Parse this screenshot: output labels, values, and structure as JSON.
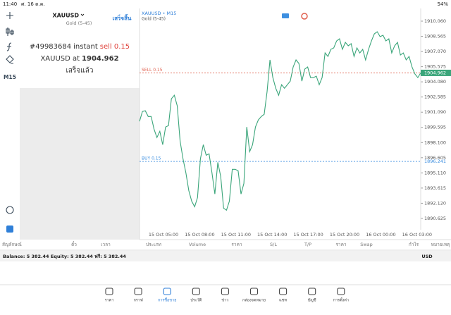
{
  "status_bar": {
    "time": "11:40",
    "date": "ศ. 16 ต.ค.",
    "battery": "54%"
  },
  "toolbar": {
    "timeframe": "M15"
  },
  "order_panel": {
    "symbol": "XAUUSD",
    "description": "Gold (5-45)",
    "done_button": "เสร็จสิ้น",
    "ticket": "#49983684",
    "mode": "instant",
    "action": "sell 0.15",
    "price_prefix": "XAUUSD at",
    "price": 1904.962,
    "status": "เสร็จแล้ว"
  },
  "chart": {
    "type": "line",
    "title": "XAUUSD • M15",
    "subtitle": "Gold (5-45)",
    "color": "#3aa57a",
    "ylim": [
      1889.51,
      1911.31
    ],
    "yticks": [
      {
        "value": 1910.06,
        "label": "1910.060"
      },
      1908.565,
      {
        "value": 1907.07,
        "label": "1907.070"
      },
      1905.575,
      {
        "value": 1904.08,
        "label": "1904.080"
      },
      1902.585,
      {
        "value": 1901.09,
        "label": "1901.090"
      },
      1899.595,
      {
        "value": 1898.1,
        "label": "1898.100"
      },
      1896.605,
      {
        "value": 1895.11,
        "label": "1895.110"
      },
      1893.615,
      {
        "value": 1892.12,
        "label": "1892.120"
      },
      1890.625
    ],
    "x_labels": [
      "15 Oct 05:00",
      "15 Oct 08:00",
      "15 Oct 11:00",
      "15 Oct 14:00",
      "15 Oct 17:00",
      "15 Oct 20:00",
      "16 Oct 00:00",
      "16 Oct 03:00"
    ],
    "values": [
      1900.19,
      1901.16,
      1901.23,
      1900.67,
      1900.67,
      1899.42,
      1898.59,
      1899.21,
      1897.89,
      1899.63,
      1899.77,
      1902.41,
      1902.76,
      1901.72,
      1898.24,
      1896.5,
      1895.11,
      1893.37,
      1892.33,
      1891.77,
      1892.68,
      1896.5,
      1897.89,
      1896.85,
      1896.99,
      1895.11,
      1893.03,
      1896.15,
      1894.76,
      1891.63,
      1891.43,
      1892.33,
      1895.46,
      1895.46,
      1895.32,
      1893.03,
      1894.07,
      1899.63,
      1897.2,
      1897.89,
      1899.63,
      1900.33,
      1900.67,
      1900.88,
      1903.11,
      1906.24,
      1904.5,
      1903.45,
      1902.76,
      1903.8,
      1903.45,
      1903.8,
      1904.15,
      1905.54,
      1906.24,
      1905.89,
      1904.15,
      1905.33,
      1905.54,
      1904.5,
      1904.5,
      1904.64,
      1903.8,
      1904.5,
      1906.93,
      1906.58,
      1907.28,
      1907.42,
      1908.11,
      1908.32,
      1907.28,
      1907.97,
      1907.63,
      1907.84,
      1906.58,
      1907.42,
      1906.93,
      1907.28,
      1906.24,
      1907.28,
      1908.11,
      1908.81,
      1909.02,
      1908.53,
      1908.67,
      1908.11,
      1908.32,
      1906.93,
      1907.63,
      1907.97,
      1906.72,
      1906.93,
      1906.24,
      1906.58,
      1905.54,
      1904.85,
      1904.5,
      1904.962
    ],
    "order_lines": [
      {
        "label": "SELL 0.15",
        "price": 1904.962,
        "color": "#e0604f"
      },
      {
        "label": "BUY 0.15",
        "price": 1896.241,
        "color": "#3d8fe0"
      }
    ]
  },
  "table": {
    "columns": [
      "สัญลักษณ์",
      "ตั๋ว",
      "เวลา",
      "ประเภท",
      "Volume",
      "ราคา",
      "S/L",
      "T/P",
      "ราคา",
      "Swap",
      "กำไร",
      "หมายเหตุ"
    ],
    "summary": "Balance: 5 382.44 Equity: 5 382.44 ฟรี: 5 382.44",
    "currency": "USD"
  },
  "tab_bar": {
    "active": 2,
    "tabs": [
      "ราคา",
      "กราฟ",
      "การซื้อขาย",
      "ประวัติ",
      "ข่าว",
      "กล่องจดหมาย",
      "แชท",
      "บัญชี",
      "การตั้งค่า"
    ]
  }
}
